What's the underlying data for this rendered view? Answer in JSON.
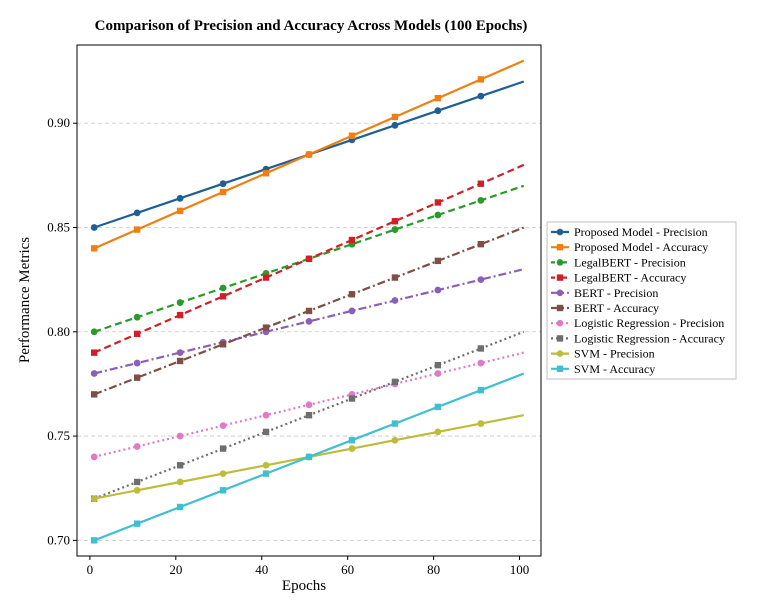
{
  "chart_data": {
    "type": "line",
    "title": "Comparison of Precision and Accuracy Across Models (100 Epochs)",
    "xlabel": "Epochs",
    "ylabel": "Performance Metrics",
    "xlim": [
      -3,
      105
    ],
    "ylim": [
      0.6925,
      0.9375
    ],
    "xticks": [
      0,
      20,
      40,
      60,
      80,
      100
    ],
    "xtick_labels": [
      "0",
      "20",
      "40",
      "60",
      "80",
      "100"
    ],
    "yticks": [
      0.7,
      0.75,
      0.8,
      0.85,
      0.9
    ],
    "ytick_labels": [
      "0.70",
      "0.75",
      "0.80",
      "0.85",
      "0.90"
    ],
    "grid": "y-dashed",
    "legend_position": "right, outside plot",
    "x": [
      1,
      11,
      21,
      31,
      41,
      51,
      61,
      71,
      81,
      91,
      101
    ],
    "series": [
      {
        "name": "Proposed Model - Precision",
        "color": "#1f5f96",
        "dash": "solid",
        "marker": "circle",
        "values": [
          0.85,
          0.857,
          0.864,
          0.871,
          0.878,
          0.885,
          0.892,
          0.899,
          0.906,
          0.913,
          0.92
        ]
      },
      {
        "name": "Proposed Model - Accuracy",
        "color": "#f07f12",
        "dash": "solid",
        "marker": "square",
        "values": [
          0.84,
          0.849,
          0.858,
          0.867,
          0.876,
          0.885,
          0.894,
          0.903,
          0.912,
          0.921,
          0.93
        ]
      },
      {
        "name": "LegalBERT - Precision",
        "color": "#2a9a2a",
        "dash": "dashed",
        "marker": "circle",
        "values": [
          0.8,
          0.807,
          0.814,
          0.821,
          0.828,
          0.835,
          0.842,
          0.849,
          0.856,
          0.863,
          0.87
        ]
      },
      {
        "name": "LegalBERT - Accuracy",
        "color": "#cf2027",
        "dash": "dashed",
        "marker": "square",
        "values": [
          0.79,
          0.799,
          0.808,
          0.817,
          0.826,
          0.835,
          0.844,
          0.853,
          0.862,
          0.871,
          0.88
        ]
      },
      {
        "name": "BERT - Precision",
        "color": "#8a5fb8",
        "dash": "dashdot",
        "marker": "circle",
        "values": [
          0.78,
          0.785,
          0.79,
          0.795,
          0.8,
          0.805,
          0.81,
          0.815,
          0.82,
          0.825,
          0.83
        ]
      },
      {
        "name": "BERT - Accuracy",
        "color": "#7f4f46",
        "dash": "dashdot",
        "marker": "square",
        "values": [
          0.77,
          0.778,
          0.786,
          0.794,
          0.802,
          0.81,
          0.818,
          0.826,
          0.834,
          0.842,
          0.85
        ]
      },
      {
        "name": "Logistic Regression - Precision",
        "color": "#e07ac4",
        "dash": "dotted",
        "marker": "circle",
        "values": [
          0.74,
          0.745,
          0.75,
          0.755,
          0.76,
          0.765,
          0.77,
          0.775,
          0.78,
          0.785,
          0.79
        ]
      },
      {
        "name": "Logistic Regression - Accuracy",
        "color": "#6e6e6e",
        "dash": "dotted",
        "marker": "square",
        "values": [
          0.72,
          0.728,
          0.736,
          0.744,
          0.752,
          0.76,
          0.768,
          0.776,
          0.784,
          0.792,
          0.8
        ]
      },
      {
        "name": "SVM - Precision",
        "color": "#bcbd3a",
        "dash": "solid",
        "marker": "circle",
        "values": [
          0.72,
          0.724,
          0.728,
          0.732,
          0.736,
          0.74,
          0.744,
          0.748,
          0.752,
          0.756,
          0.76
        ]
      },
      {
        "name": "SVM - Accuracy",
        "color": "#3fbfcf",
        "dash": "solid",
        "marker": "square",
        "values": [
          0.7,
          0.708,
          0.716,
          0.724,
          0.732,
          0.74,
          0.748,
          0.756,
          0.764,
          0.772,
          0.78
        ]
      }
    ]
  }
}
